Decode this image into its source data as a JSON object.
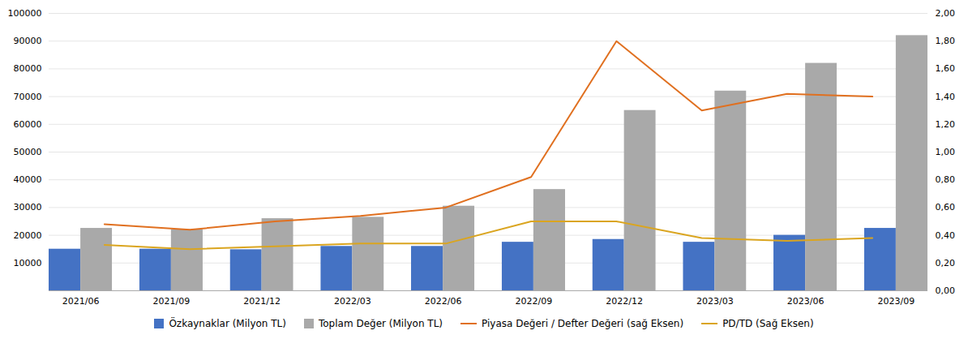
{
  "chart_data": {
    "type": "bar",
    "categories": [
      "2021/06",
      "2021/09",
      "2021/12",
      "2022/03",
      "2022/06",
      "2022/09",
      "2022/12",
      "2023/03",
      "2023/06",
      "2023/09"
    ],
    "series": [
      {
        "name": "Özkaynaklar (Milyon TL)",
        "type": "bar",
        "color": "#4472C4",
        "values": [
          15000,
          15000,
          14800,
          16000,
          16000,
          17500,
          18500,
          17500,
          20000,
          22500
        ]
      },
      {
        "name": "Toplam Değer (Milyon TL)",
        "type": "bar",
        "color": "#A9A9A9",
        "values": [
          22500,
          22000,
          26000,
          26500,
          30500,
          36500,
          65000,
          72000,
          82000,
          92000
        ]
      },
      {
        "name": "Piyasa Değeri / Defter Değeri (sağ Eksen)",
        "type": "line",
        "axis": "y2",
        "color": "#E07020",
        "values": [
          0.48,
          0.44,
          0.5,
          0.54,
          0.6,
          0.82,
          1.8,
          1.3,
          1.42,
          1.4
        ]
      },
      {
        "name": "PD/TD (Sağ Eksen)",
        "type": "line",
        "axis": "y2",
        "color": "#DAA520",
        "values": [
          0.33,
          0.3,
          0.32,
          0.34,
          0.34,
          0.5,
          0.5,
          0.38,
          0.36,
          0.38
        ]
      }
    ],
    "ylim": [
      0,
      100000
    ],
    "yticks": [
      10000,
      20000,
      30000,
      40000,
      50000,
      60000,
      70000,
      80000,
      90000,
      100000
    ],
    "y2lim": [
      0.0,
      2.0
    ],
    "y2ticks": [
      {
        "value": 0,
        "label": "0,00"
      },
      {
        "value": 0.2,
        "label": "0,20"
      },
      {
        "value": 0.4,
        "label": "0,40"
      },
      {
        "value": 0.6,
        "label": "0,60"
      },
      {
        "value": 0.8,
        "label": "0,80"
      },
      {
        "value": 1.0,
        "label": "1,00"
      },
      {
        "value": 1.2,
        "label": "1,20"
      },
      {
        "value": 1.4,
        "label": "1,40"
      },
      {
        "value": 1.6,
        "label": "1,60"
      },
      {
        "value": 1.8,
        "label": "1,80"
      },
      {
        "value": 2.0,
        "label": "2,00"
      }
    ],
    "grid": true,
    "legend": "bottom"
  }
}
